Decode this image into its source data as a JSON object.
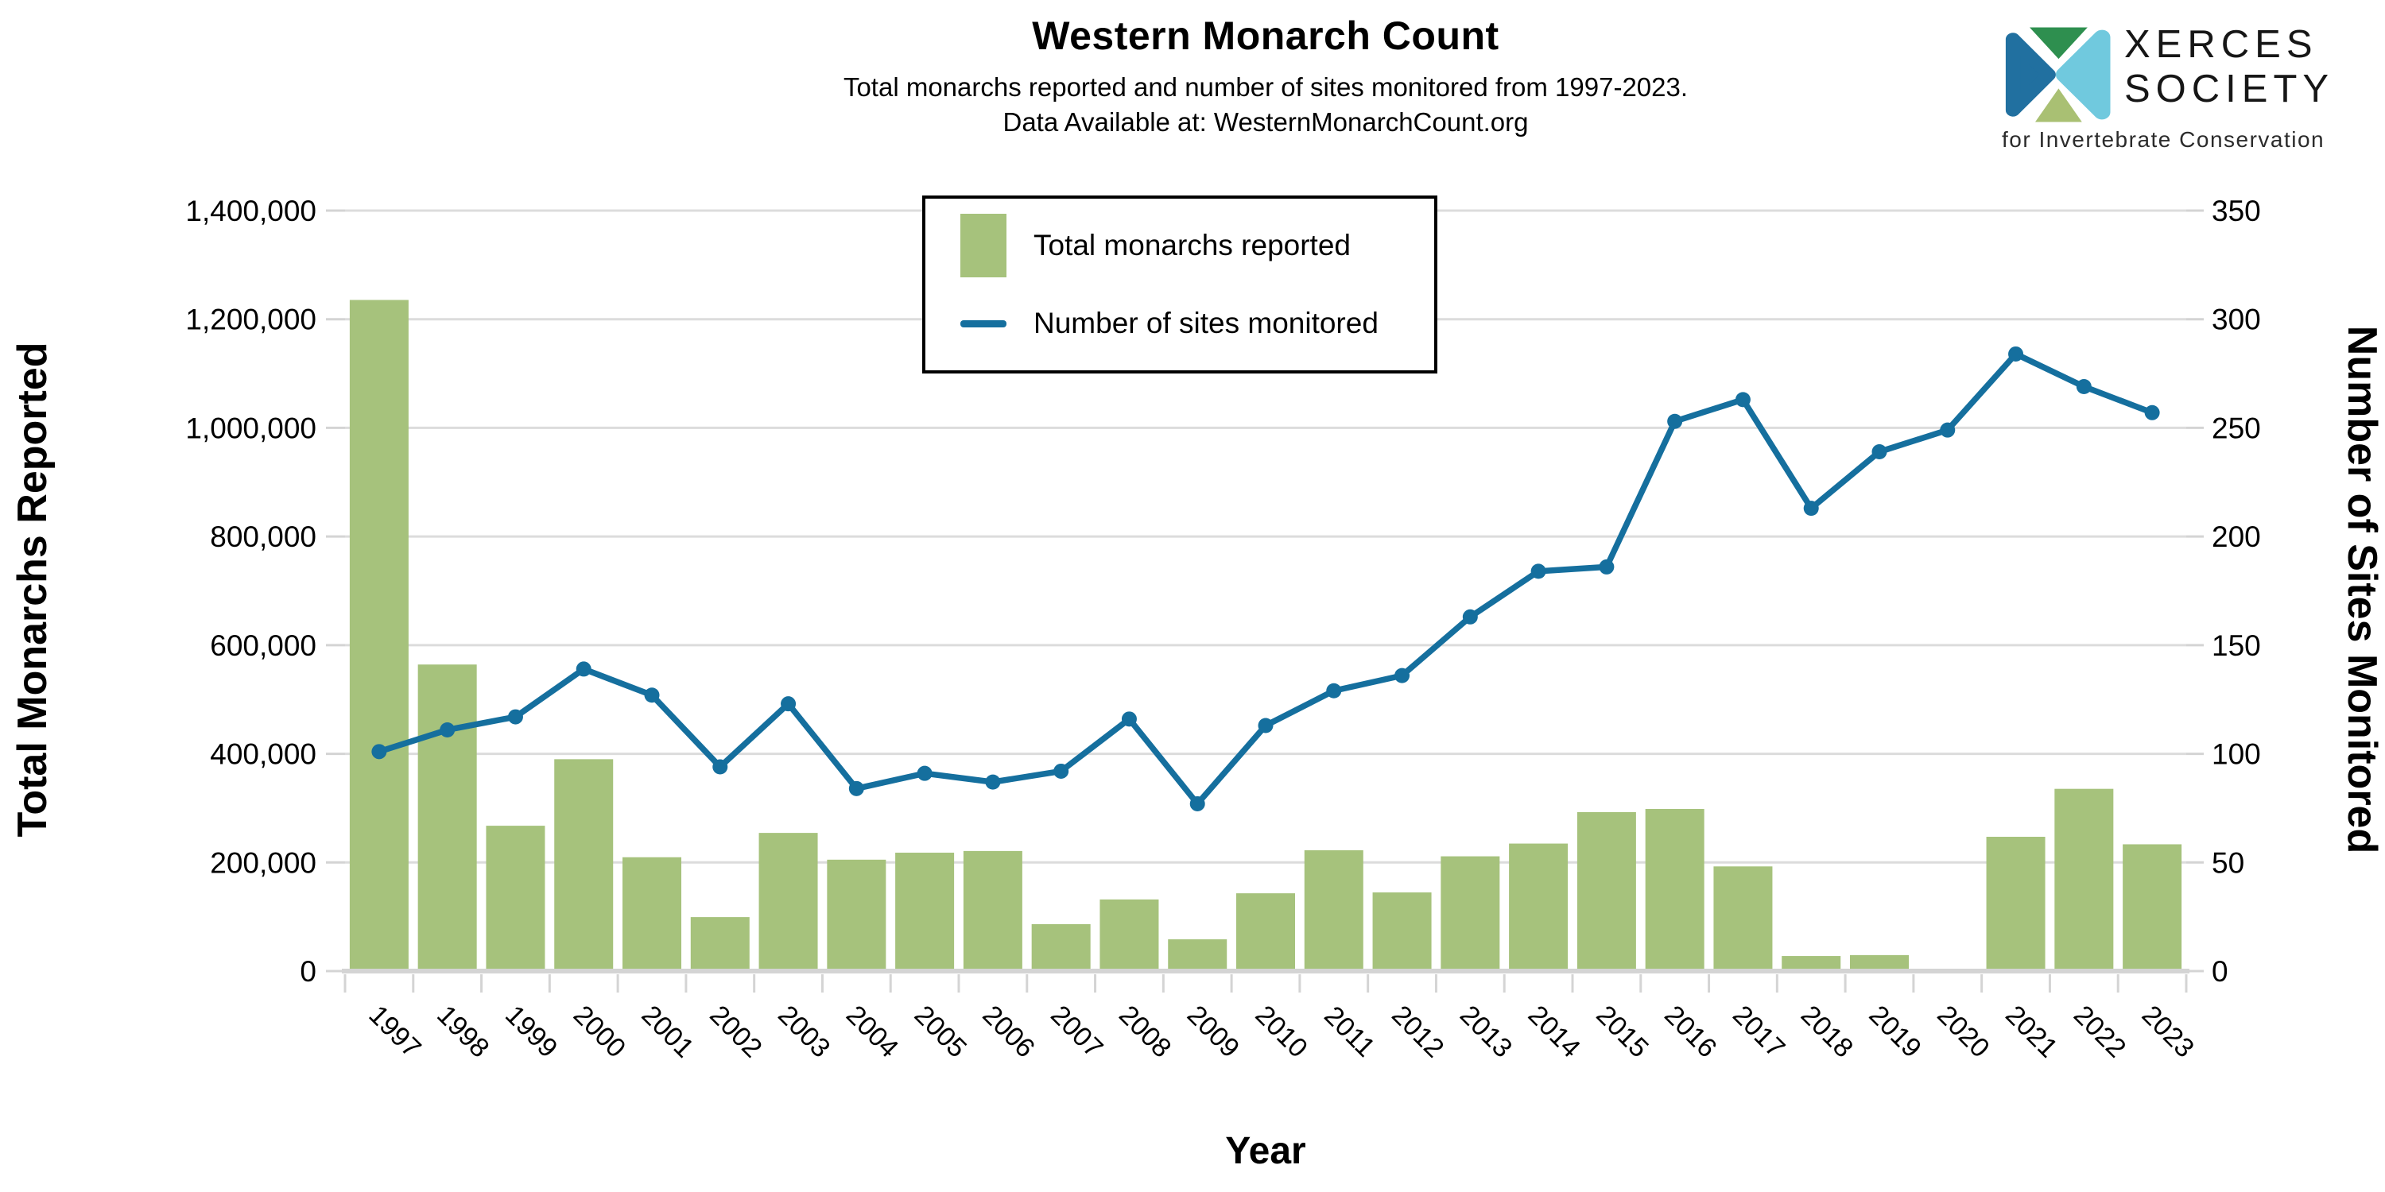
{
  "header": {
    "title": "Western Monarch Count",
    "subtitle_line1": "Total monarchs reported and number of sites monitored from 1997-2023.",
    "subtitle_line2": "Data Available at: WesternMonarchCount.org"
  },
  "logo": {
    "name_line1": "XERCES",
    "name_line2": "SOCIETY",
    "tagline": "for Invertebrate Conservation",
    "mark_colors": {
      "left": "#2170a0",
      "top": "#2e8f4f",
      "right": "#70c9de",
      "bottom": "#a9c073"
    }
  },
  "legend": {
    "items": [
      {
        "label": "Total monarchs reported",
        "swatch": "bar"
      },
      {
        "label": "Number of sites monitored",
        "swatch": "line"
      }
    ]
  },
  "chart_data": {
    "type": "bar",
    "title": "Western Monarch Count",
    "subtitle": "Total monarchs reported and number of sites monitored from 1997-2023. Data Available at: WesternMonarchCount.org",
    "categories": [
      "1997",
      "1998",
      "1999",
      "2000",
      "2001",
      "2002",
      "2003",
      "2004",
      "2005",
      "2006",
      "2007",
      "2008",
      "2009",
      "2010",
      "2011",
      "2012",
      "2013",
      "2014",
      "2015",
      "2016",
      "2017",
      "2018",
      "2019",
      "2020",
      "2021",
      "2022",
      "2023"
    ],
    "series": [
      {
        "name": "Total monarchs reported",
        "type": "bar",
        "y_axis": "left",
        "color": "#a6c27c",
        "values": [
          1235490,
          564349,
          267574,
          390057,
          209570,
          99353,
          254378,
          205085,
          217992,
          221058,
          86437,
          131889,
          58468,
          143204,
          222525,
          144812,
          211275,
          234731,
          292674,
          298464,
          192668,
          27721,
          29436,
          1914,
          247237,
          335479,
          233394
        ]
      },
      {
        "name": "Number of sites monitored",
        "type": "line",
        "y_axis": "right",
        "color": "#156f9e",
        "values": [
          101,
          111,
          117,
          139,
          127,
          94,
          123,
          84,
          91,
          87,
          92,
          116,
          77,
          113,
          129,
          136,
          163,
          184,
          186,
          253,
          263,
          213,
          239,
          249,
          284,
          269,
          257
        ]
      }
    ],
    "x_axis": {
      "label": "Year"
    },
    "left_axis": {
      "label": "Total Monarchs Reported",
      "min": 0,
      "max": 1400000,
      "step": 200000
    },
    "right_axis": {
      "label": "Number of Sites Monitored",
      "min": 0,
      "max": 350,
      "step": 50
    },
    "grid": true,
    "legend_position": "top-center",
    "grid_color": "#dcdcdc",
    "axis_color": "#d4d4d4"
  }
}
